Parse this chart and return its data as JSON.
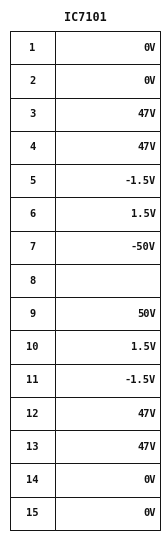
{
  "title": "IC7101",
  "pins": [
    "1",
    "2",
    "3",
    "4",
    "5",
    "6",
    "7",
    "8",
    "9",
    "10",
    "11",
    "12",
    "13",
    "14",
    "15"
  ],
  "voltages": [
    "0V",
    "0V",
    "47V",
    "47V",
    "-1.5V",
    "1.5V",
    "-50V",
    "",
    "50V",
    "1.5V",
    "-1.5V",
    "47V",
    "47V",
    "0V",
    "0V"
  ],
  "bg_color": "#ffffff",
  "cell_bg": "#ffffff",
  "border_color": "#111111",
  "text_color": "#111111",
  "title_fontsize": 8.5,
  "cell_fontsize": 7.5,
  "fig_width": 1.65,
  "fig_height": 5.33,
  "dpi": 100
}
